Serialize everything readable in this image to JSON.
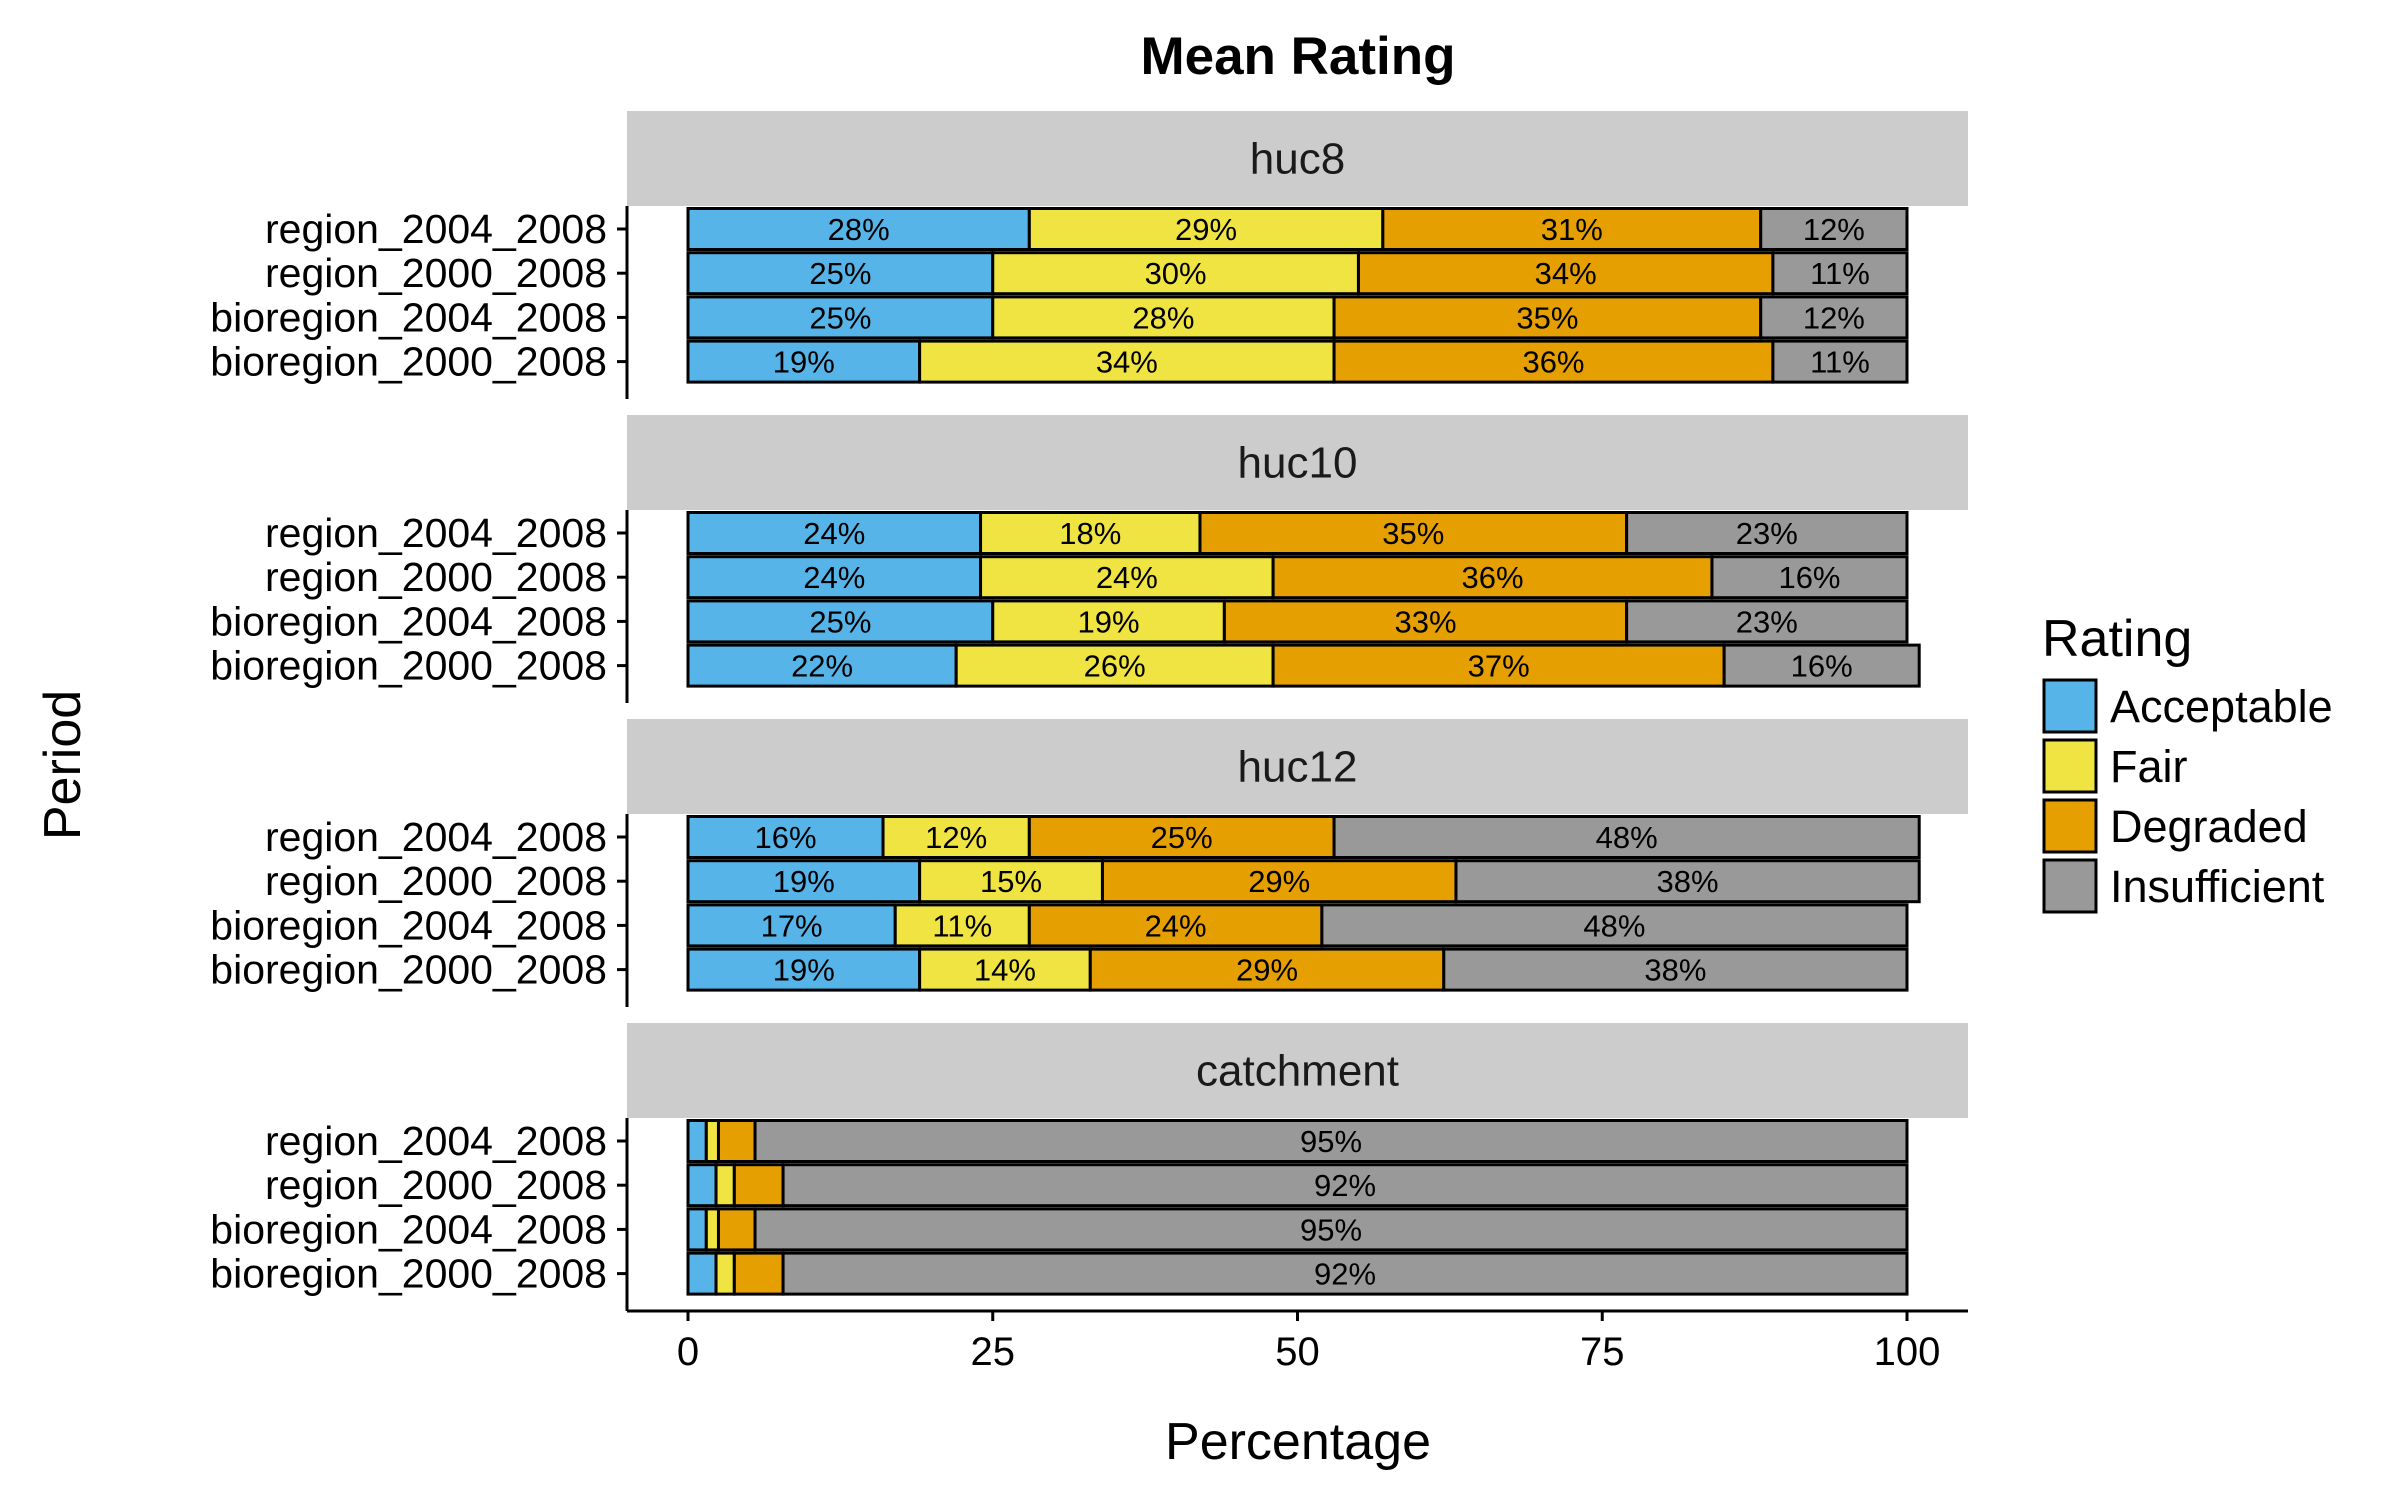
{
  "chart_data": {
    "type": "bar",
    "orientation": "horizontal",
    "stacked": true,
    "title": "Mean Rating",
    "xlabel": "Percentage",
    "ylabel": "Period",
    "xlim": [
      0,
      100
    ],
    "x_ticks": [
      0,
      25,
      50,
      75,
      100
    ],
    "grid": false,
    "legend": {
      "title": "Rating",
      "position": "right",
      "items": [
        {
          "name": "Acceptable",
          "color": "#56B4E9"
        },
        {
          "name": "Fair",
          "color": "#F0E442"
        },
        {
          "name": "Degraded",
          "color": "#E69F00"
        },
        {
          "name": "Insufficient",
          "color": "#999999"
        }
      ]
    },
    "categories": [
      "region_2004_2008",
      "region_2000_2008",
      "bioregion_2004_2008",
      "bioregion_2000_2008"
    ],
    "facets": [
      {
        "name": "huc8",
        "rows": [
          {
            "values": [
              28,
              29,
              31,
              12
            ],
            "labels": [
              "28%",
              "29%",
              "31%",
              "12%"
            ]
          },
          {
            "values": [
              25,
              30,
              34,
              11
            ],
            "labels": [
              "25%",
              "30%",
              "34%",
              "11%"
            ]
          },
          {
            "values": [
              25,
              28,
              35,
              12
            ],
            "labels": [
              "25%",
              "28%",
              "35%",
              "12%"
            ]
          },
          {
            "values": [
              19,
              34,
              36,
              11
            ],
            "labels": [
              "19%",
              "34%",
              "36%",
              "11%"
            ]
          }
        ]
      },
      {
        "name": "huc10",
        "rows": [
          {
            "values": [
              24,
              18,
              35,
              23
            ],
            "labels": [
              "24%",
              "18%",
              "35%",
              "23%"
            ]
          },
          {
            "values": [
              24,
              24,
              36,
              16
            ],
            "labels": [
              "24%",
              "24%",
              "36%",
              "16%"
            ]
          },
          {
            "values": [
              25,
              19,
              33,
              23
            ],
            "labels": [
              "25%",
              "19%",
              "33%",
              "23%"
            ]
          },
          {
            "values": [
              22,
              26,
              37,
              16
            ],
            "labels": [
              "22%",
              "26%",
              "37%",
              "16%"
            ]
          }
        ]
      },
      {
        "name": "huc12",
        "rows": [
          {
            "values": [
              16,
              12,
              25,
              48
            ],
            "labels": [
              "16%",
              "12%",
              "25%",
              "48%"
            ]
          },
          {
            "values": [
              19,
              15,
              29,
              38
            ],
            "labels": [
              "19%",
              "15%",
              "29%",
              "38%"
            ]
          },
          {
            "values": [
              17,
              11,
              24,
              48
            ],
            "labels": [
              "17%",
              "11%",
              "24%",
              "48%"
            ]
          },
          {
            "values": [
              19,
              14,
              29,
              38
            ],
            "labels": [
              "19%",
              "14%",
              "29%",
              "38%"
            ]
          }
        ]
      },
      {
        "name": "catchment",
        "rows": [
          {
            "values": [
              1.5,
              1,
              3,
              94.5
            ],
            "labels": [
              "",
              "",
              "",
              "95%"
            ]
          },
          {
            "values": [
              2.3,
              1.5,
              4,
              92.2
            ],
            "labels": [
              "",
              "",
              "",
              "92%"
            ]
          },
          {
            "values": [
              1.5,
              1,
              3,
              94.5
            ],
            "labels": [
              "",
              "",
              "",
              "95%"
            ]
          },
          {
            "values": [
              2.3,
              1.5,
              4,
              92.2
            ],
            "labels": [
              "",
              "",
              "",
              "92%"
            ]
          }
        ]
      }
    ]
  }
}
